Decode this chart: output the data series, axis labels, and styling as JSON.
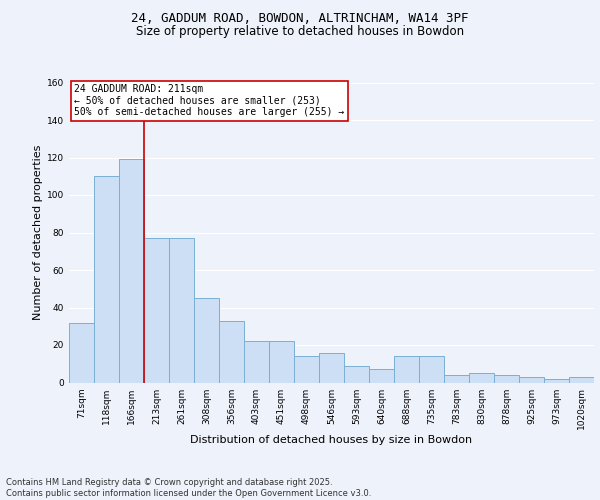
{
  "title_line1": "24, GADDUM ROAD, BOWDON, ALTRINCHAM, WA14 3PF",
  "title_line2": "Size of property relative to detached houses in Bowdon",
  "xlabel": "Distribution of detached houses by size in Bowdon",
  "ylabel": "Number of detached properties",
  "categories": [
    "71sqm",
    "118sqm",
    "166sqm",
    "213sqm",
    "261sqm",
    "308sqm",
    "356sqm",
    "403sqm",
    "451sqm",
    "498sqm",
    "546sqm",
    "593sqm",
    "640sqm",
    "688sqm",
    "735sqm",
    "783sqm",
    "830sqm",
    "878sqm",
    "925sqm",
    "973sqm",
    "1020sqm"
  ],
  "values": [
    32,
    110,
    119,
    77,
    77,
    45,
    33,
    22,
    22,
    14,
    16,
    9,
    7,
    14,
    14,
    4,
    5,
    4,
    3,
    2,
    3
  ],
  "bar_color": "#ccdff5",
  "bar_edge_color": "#7aafd4",
  "vline_color": "#cc0000",
  "vline_bar_index": 3,
  "annotation_text": "24 GADDUM ROAD: 211sqm\n← 50% of detached houses are smaller (253)\n50% of semi-detached houses are larger (255) →",
  "annotation_box_facecolor": "#ffffff",
  "annotation_box_edgecolor": "#cc0000",
  "ylim": [
    0,
    160
  ],
  "yticks": [
    0,
    20,
    40,
    60,
    80,
    100,
    120,
    140,
    160
  ],
  "footer_text": "Contains HM Land Registry data © Crown copyright and database right 2025.\nContains public sector information licensed under the Open Government Licence v3.0.",
  "bg_color": "#eef2fb",
  "plot_bg_color": "#eef2fb",
  "grid_color": "#ffffff",
  "title1_fontsize": 9,
  "title2_fontsize": 8.5,
  "axis_label_fontsize": 8,
  "tick_fontsize": 6.5,
  "annotation_fontsize": 7,
  "footer_fontsize": 6
}
